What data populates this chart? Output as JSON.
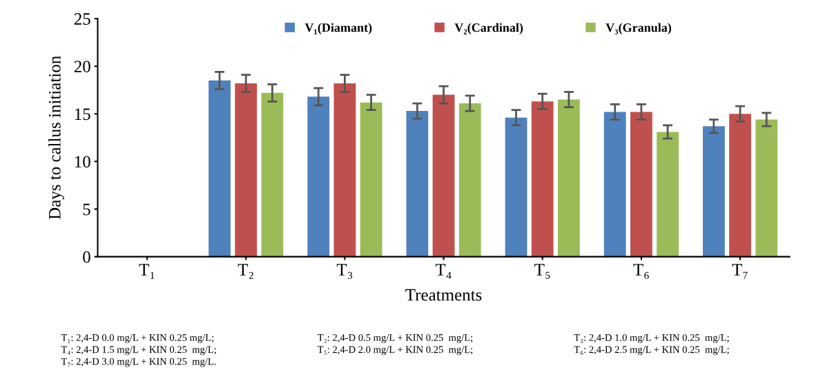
{
  "chart_data": {
    "type": "bar",
    "xlabel": "Treatments",
    "ylabel": "Days to callus initiation",
    "categories": [
      "T₁",
      "T₂",
      "T₃",
      "T₄",
      "T₅",
      "T₆",
      "T₇"
    ],
    "series": [
      {
        "name": "V₁(Diamant)",
        "color": "#4f81bd",
        "values": [
          0,
          18.5,
          16.8,
          15.3,
          14.6,
          15.2,
          13.7
        ],
        "errors": [
          null,
          0.9,
          0.9,
          0.8,
          0.8,
          0.8,
          0.7
        ]
      },
      {
        "name": "V₂(Cardinal)",
        "color": "#c0504d",
        "values": [
          0,
          18.2,
          18.2,
          17.0,
          16.3,
          15.2,
          15.0
        ],
        "errors": [
          null,
          0.9,
          0.9,
          0.9,
          0.8,
          0.8,
          0.8
        ]
      },
      {
        "name": "V₃(Granula)",
        "color": "#9bbb59",
        "values": [
          0,
          17.2,
          16.2,
          16.1,
          16.5,
          13.1,
          14.4
        ],
        "errors": [
          null,
          0.9,
          0.8,
          0.8,
          0.8,
          0.7,
          0.7
        ]
      }
    ],
    "ylim": [
      0,
      25
    ],
    "yticks": [
      0,
      5,
      10,
      15,
      20,
      25
    ],
    "grid": false,
    "legend": "top",
    "annotations": [
      "T₁: 2,4-D 0.0 mg/L + KIN 0.25 mg/L;",
      "T₂: 2,4-D 0.5 mg/L + KIN 0.25  mg/L;",
      "T₃: 2,4-D 1.0 mg/L + KIN 0.25  mg/L;",
      "T₄: 2,4-D 1.5 mg/L + KIN 0.25  mg/L;",
      "T₅: 2,4-D 2.0 mg/L + KIN 0.25  mg/L;",
      "T₆: 2,4-D 2.5 mg/L + KIN 0.25  mg/L;",
      "T₇: 2,4-D 3.0 mg/L + KIN 0.25  mg/L."
    ]
  }
}
